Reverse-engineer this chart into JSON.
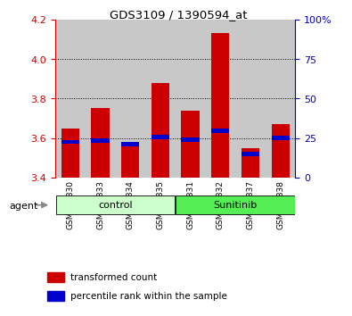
{
  "title": "GDS3109 / 1390594_at",
  "samples": [
    "GSM159830",
    "GSM159833",
    "GSM159834",
    "GSM159835",
    "GSM159831",
    "GSM159832",
    "GSM159837",
    "GSM159838"
  ],
  "groups": [
    "control",
    "control",
    "control",
    "control",
    "Sunitinib",
    "Sunitinib",
    "Sunitinib",
    "Sunitinib"
  ],
  "red_values": [
    3.65,
    3.75,
    3.56,
    3.88,
    3.74,
    4.13,
    3.55,
    3.67
  ],
  "blue_values": [
    3.58,
    3.585,
    3.57,
    3.605,
    3.59,
    3.638,
    3.52,
    3.602
  ],
  "ymin": 3.4,
  "ymax": 4.2,
  "y2min": 0,
  "y2max": 100,
  "yticks": [
    3.4,
    3.6,
    3.8,
    4.0,
    4.2
  ],
  "y2ticks": [
    0,
    25,
    50,
    75,
    100
  ],
  "red_color": "#cc0000",
  "blue_color": "#0000cc",
  "control_color": "#ccffcc",
  "sunitinib_color": "#55ee55",
  "bar_bg_color": "#c8c8c8",
  "xlabel_agent": "agent",
  "legend_red": "transformed count",
  "legend_blue": "percentile rank within the sample",
  "bar_width": 0.6,
  "baseline": 3.4,
  "grid_lines": [
    3.6,
    3.8,
    4.0
  ]
}
